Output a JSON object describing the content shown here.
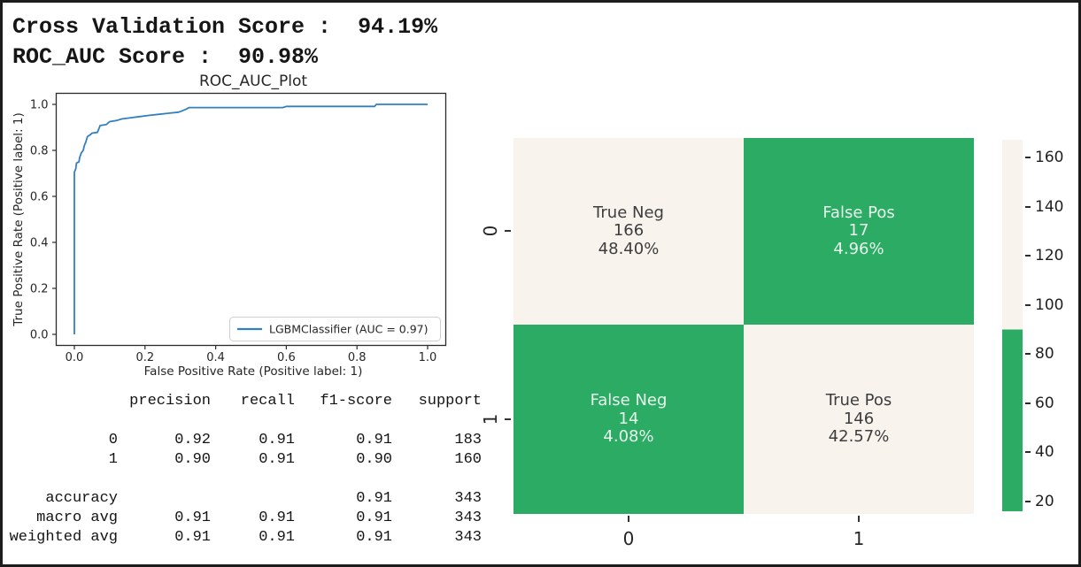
{
  "header": {
    "line1": "Cross Validation Score :  94.19%",
    "line2": "ROC_AUC Score :  90.98%",
    "cross_validation_score": "94.19%",
    "roc_auc_score": "90.98%"
  },
  "chart_data": [
    {
      "type": "line",
      "title": "ROC_AUC_Plot",
      "xlabel": "False Positive Rate (Positive label: 1)",
      "ylabel": "True Positive Rate (Positive label: 1)",
      "xlim": [
        -0.05,
        1.05
      ],
      "ylim": [
        -0.05,
        1.05
      ],
      "xticks": [
        "0.0",
        "0.2",
        "0.4",
        "0.6",
        "0.8",
        "1.0"
      ],
      "yticks": [
        "0.0",
        "0.2",
        "0.4",
        "0.6",
        "0.8",
        "1.0"
      ],
      "grid": false,
      "line_color": "#3380bf",
      "legend": {
        "position": "lower right",
        "label": "LGBMClassifier (AUC = 0.97)"
      },
      "auc": 0.97,
      "series": [
        {
          "name": "LGBMClassifier",
          "points": [
            [
              0,
              0
            ],
            [
              0,
              0.705
            ],
            [
              0.004,
              0.72
            ],
            [
              0.006,
              0.745
            ],
            [
              0.013,
              0.75
            ],
            [
              0.015,
              0.77
            ],
            [
              0.02,
              0.79
            ],
            [
              0.025,
              0.8
            ],
            [
              0.028,
              0.82
            ],
            [
              0.032,
              0.835
            ],
            [
              0.037,
              0.86
            ],
            [
              0.045,
              0.868
            ],
            [
              0.05,
              0.875
            ],
            [
              0.065,
              0.878
            ],
            [
              0.068,
              0.888
            ],
            [
              0.073,
              0.908
            ],
            [
              0.09,
              0.912
            ],
            [
              0.1,
              0.925
            ],
            [
              0.12,
              0.93
            ],
            [
              0.135,
              0.937
            ],
            [
              0.16,
              0.942
            ],
            [
              0.185,
              0.947
            ],
            [
              0.21,
              0.952
            ],
            [
              0.24,
              0.957
            ],
            [
              0.27,
              0.962
            ],
            [
              0.295,
              0.966
            ],
            [
              0.305,
              0.972
            ],
            [
              0.315,
              0.978
            ],
            [
              0.325,
              0.986
            ],
            [
              0.59,
              0.986
            ],
            [
              0.6,
              0.991
            ],
            [
              0.85,
              0.991
            ],
            [
              0.855,
              1
            ],
            [
              1,
              1
            ]
          ]
        }
      ]
    },
    {
      "type": "heatmap",
      "x_ticklabels": [
        "0",
        "1"
      ],
      "y_ticklabels": [
        "0",
        "1"
      ],
      "cells": [
        {
          "row": 0,
          "col": 0,
          "label": "True Neg",
          "count": 166,
          "percent": "48.40%"
        },
        {
          "row": 0,
          "col": 1,
          "label": "False Pos",
          "count": 17,
          "percent": "4.96%"
        },
        {
          "row": 1,
          "col": 0,
          "label": "False Neg",
          "count": 14,
          "percent": "4.08%"
        },
        {
          "row": 1,
          "col": 1,
          "label": "True Pos",
          "count": 146,
          "percent": "42.57%"
        }
      ],
      "colormap": {
        "low_color": "#2bab63",
        "high_color": "#f9f3ee",
        "threshold": 90,
        "text_on_low": "#e8f5ec",
        "text_on_high": "#3d3d3d"
      },
      "colorbar": {
        "vmin": 16,
        "vmax": 167.2,
        "ticks": [
          20,
          40,
          60,
          80,
          100,
          120,
          140,
          160
        ]
      }
    }
  ],
  "report": {
    "columns": [
      "precision",
      "recall",
      "f1-score",
      "support"
    ],
    "class_rows": [
      {
        "label": "0",
        "precision": "0.92",
        "recall": "0.91",
        "f1_score": "0.91",
        "support": "183"
      },
      {
        "label": "1",
        "precision": "0.90",
        "recall": "0.91",
        "f1_score": "0.90",
        "support": "160"
      }
    ],
    "summary_rows": [
      {
        "label": "accuracy",
        "precision": "",
        "recall": "",
        "f1_score": "0.91",
        "support": "343"
      },
      {
        "label": "macro avg",
        "precision": "0.91",
        "recall": "0.91",
        "f1_score": "0.91",
        "support": "343"
      },
      {
        "label": "weighted avg",
        "precision": "0.91",
        "recall": "0.91",
        "f1_score": "0.91",
        "support": "343"
      }
    ]
  }
}
